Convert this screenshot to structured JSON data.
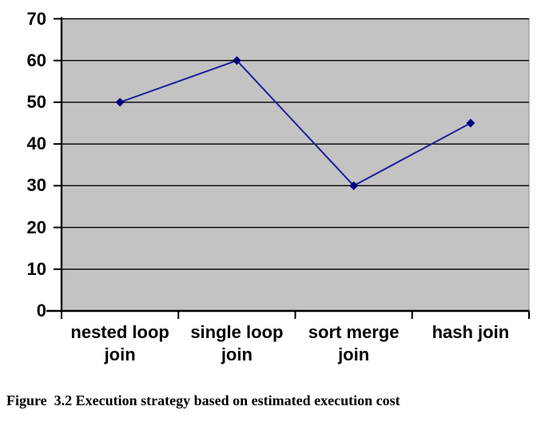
{
  "figure": {
    "caption": "Figure  3.2 Execution strategy based on estimated execution cost"
  },
  "chart_data": {
    "type": "line",
    "categories": [
      "nested loop join",
      "single loop join",
      "sort merge join",
      "hash join"
    ],
    "values": [
      50,
      60,
      30,
      45
    ],
    "title": "",
    "xlabel": "",
    "ylabel": "",
    "ylim": [
      0,
      70
    ],
    "yticks": [
      0,
      10,
      20,
      30,
      40,
      50,
      60,
      70
    ],
    "grid": true,
    "legend_position": "none",
    "marker": "diamond",
    "colors": {
      "line": "#1f1f9c",
      "marker": "#00007f",
      "plot_background": "#c3c3c3",
      "plot_border": "#8a8a8a",
      "gridline": "#000000",
      "axis": "#000000",
      "text": "#000000"
    }
  }
}
